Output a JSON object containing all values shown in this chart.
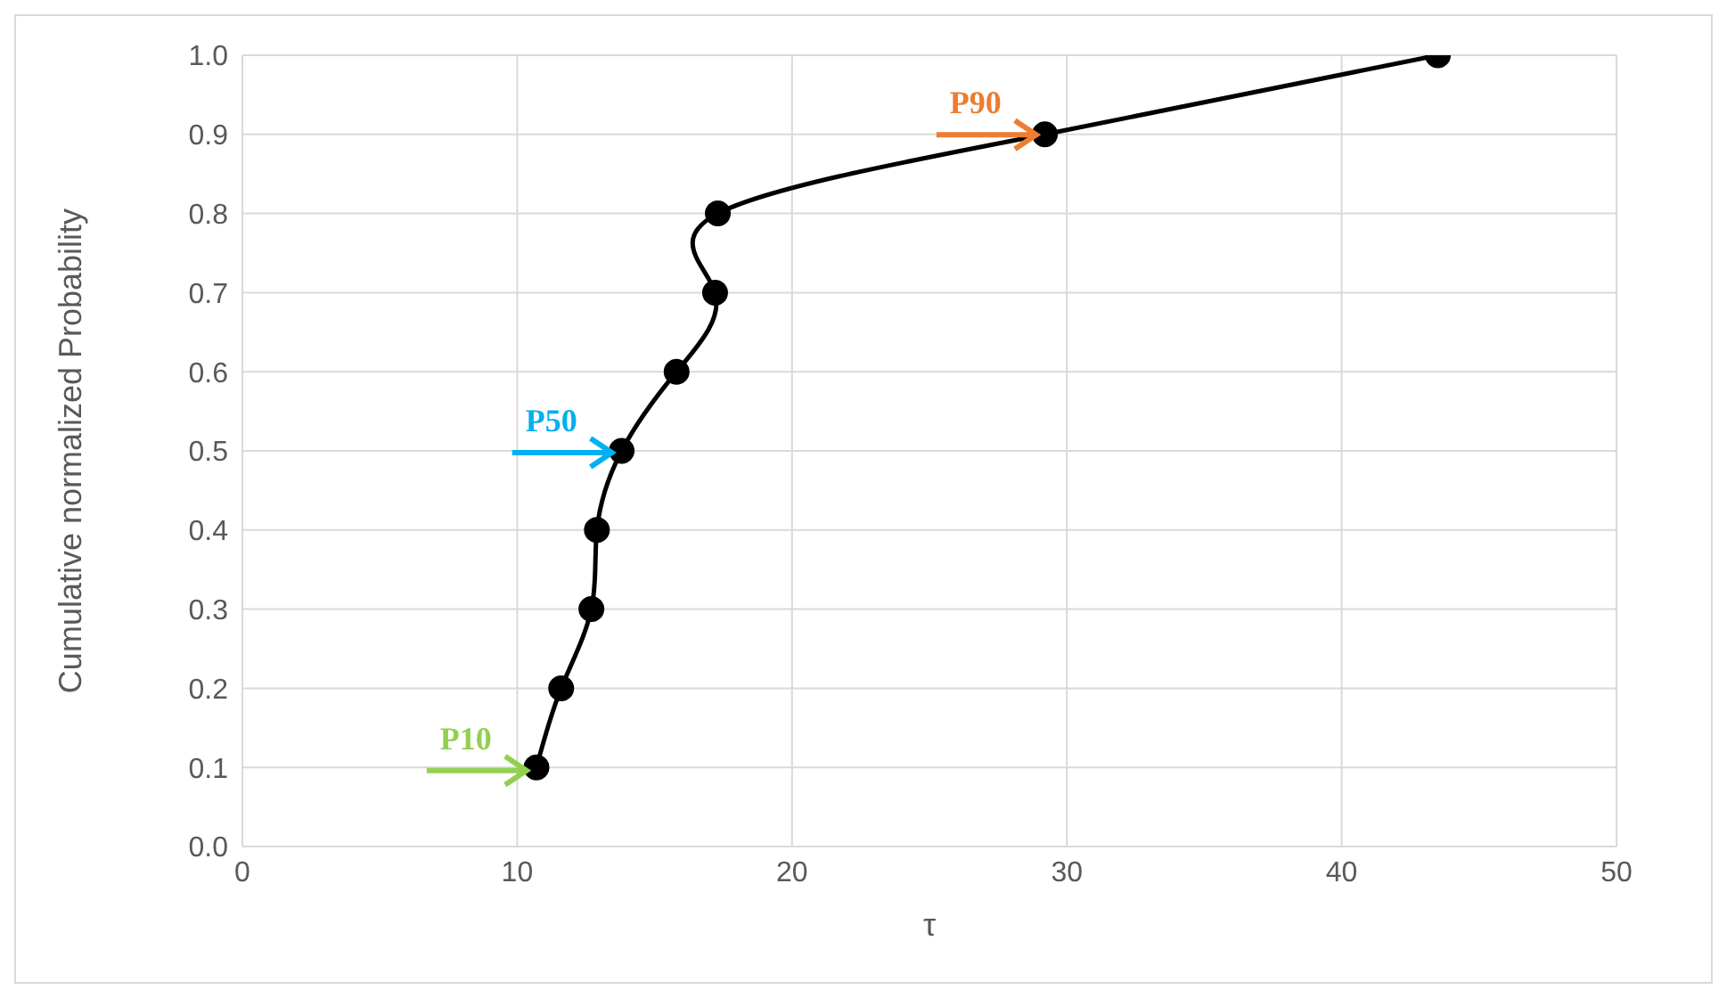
{
  "chart_data": {
    "type": "line",
    "xlabel": "τ",
    "ylabel": "Cumulative normalized Probability",
    "x": [
      10.7,
      11.6,
      12.7,
      12.9,
      13.8,
      15.8,
      17.2,
      17.3,
      29.2,
      43.5
    ],
    "series": [
      {
        "color": "#000000",
        "values": [
          0.1,
          0.2,
          0.3,
          0.4,
          0.5,
          0.6,
          0.7,
          0.8,
          0.9,
          1.0
        ]
      }
    ],
    "xlim": [
      0,
      50
    ],
    "xticks": [
      0,
      10,
      20,
      30,
      40,
      50
    ],
    "ylim": [
      0,
      1
    ],
    "yticks": [
      {
        "value": 0,
        "label": "0.0"
      },
      {
        "value": 0.1,
        "label": "0.1"
      },
      {
        "value": 0.2,
        "label": "0.2"
      },
      {
        "value": 0.3,
        "label": "0.3"
      },
      {
        "value": 0.4,
        "label": "0.4"
      },
      {
        "value": 0.5,
        "label": "0.5"
      },
      {
        "value": 0.6,
        "label": "0.6"
      },
      {
        "value": 0.7,
        "label": "0.7"
      },
      {
        "value": 0.8,
        "label": "0.8"
      },
      {
        "value": 0.9,
        "label": "0.9"
      },
      {
        "value": 1,
        "label": "1.0"
      }
    ],
    "grid": true,
    "marker": "circle",
    "line_style": "solid",
    "legend": false,
    "annotations": [
      {
        "text": "P10",
        "x": 10.7,
        "y": 0.1
      },
      {
        "text": "P50",
        "x": 13.8,
        "y": 0.5
      },
      {
        "text": "P90",
        "x": 29.2,
        "y": 0.9
      }
    ]
  }
}
